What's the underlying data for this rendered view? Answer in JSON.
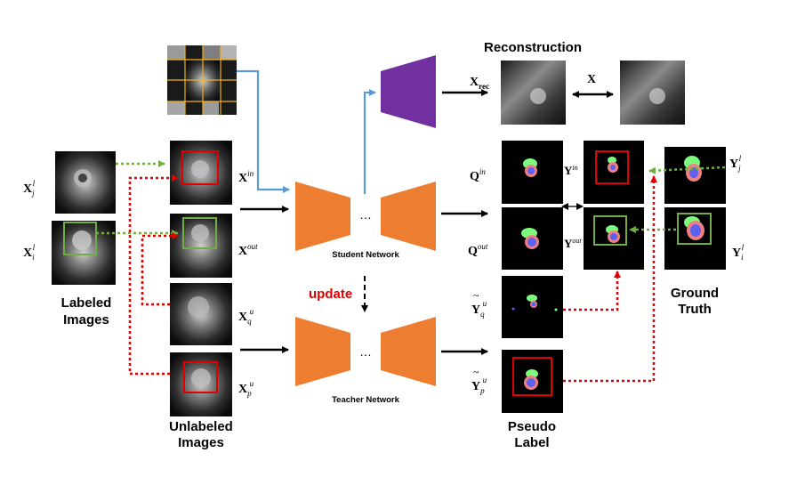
{
  "colors": {
    "encoder": "#ED7D31",
    "decoder_rec": "#7030A0",
    "arrow_black": "#000000",
    "arrow_blue": "#5B9BD5",
    "arrow_green": "#70AD47",
    "arrow_red": "#E00000",
    "update_text": "#E00000",
    "box_red": "#E00000",
    "box_green": "#70AD47",
    "grid_line": "#F0B020"
  },
  "headings": {
    "reconstruction": "Reconstruction",
    "labeled": [
      "Labeled",
      "Images"
    ],
    "unlabeled": [
      "Unlabeled",
      "Images"
    ],
    "pseudo": [
      "Pseudo",
      "Label"
    ],
    "ground_truth": [
      "Ground",
      "Truth"
    ]
  },
  "networks": {
    "student": "Student Network",
    "teacher": "Teacher Network",
    "ellipsis": "…",
    "update": "update"
  },
  "symbols": {
    "xjl": {
      "base": "X",
      "sub": "j",
      "sup": "l"
    },
    "xil": {
      "base": "X",
      "sub": "i",
      "sup": "l"
    },
    "xin": {
      "base": "X",
      "sup": "in"
    },
    "xout": {
      "base": "X",
      "sup": "out"
    },
    "xqu": {
      "base": "X",
      "sub": "q",
      "sup": "u"
    },
    "xpu": {
      "base": "X",
      "sub": "p",
      "sup": "u"
    },
    "xrec": {
      "base": "X",
      "sub": "rec"
    },
    "x": {
      "base": "X"
    },
    "qin": {
      "base": "Q",
      "sup": "in"
    },
    "qout": {
      "base": "Q",
      "sup": "out"
    },
    "yin": {
      "base": "Y",
      "sup": "in"
    },
    "yout": {
      "base": "Y",
      "sup": "out"
    },
    "yjl": {
      "base": "Y",
      "sub": "j",
      "sup": "l"
    },
    "yil": {
      "base": "Y",
      "sub": "i",
      "sup": "l"
    },
    "yqu": {
      "base": "Y",
      "tilde": "~",
      "sub": "q",
      "sup": "u"
    },
    "ypu": {
      "base": "Y",
      "tilde": "~",
      "sub": "p",
      "sup": "u"
    }
  }
}
